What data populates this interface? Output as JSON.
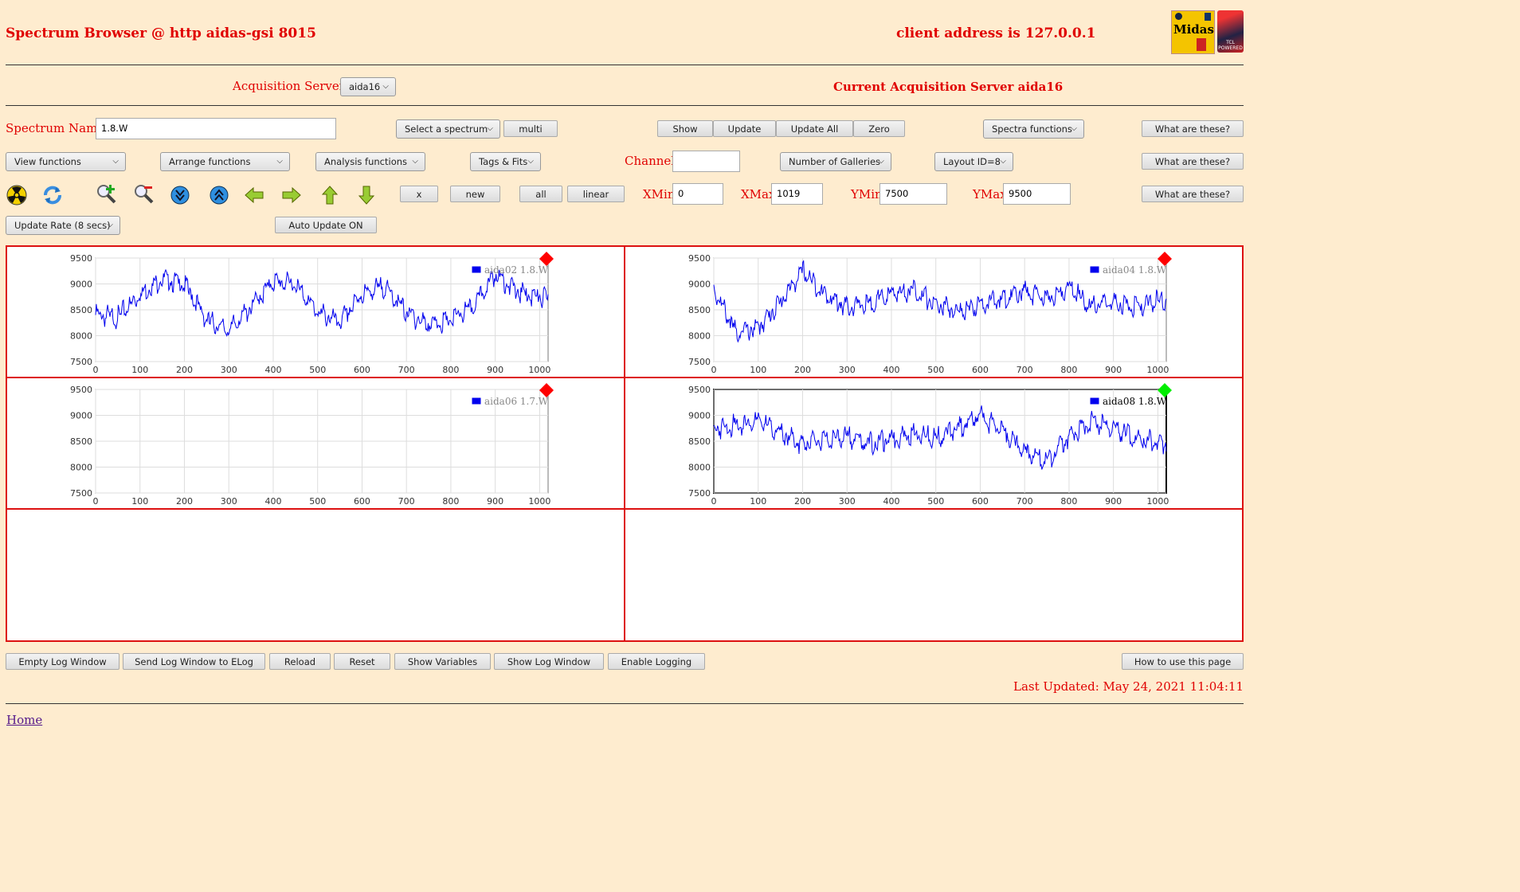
{
  "header": {
    "title": "Spectrum Browser @ http aidas-gsi 8015",
    "client": "client address is 127.0.0.1",
    "logo1_text": "Midas",
    "logo2_text": "TCL POWERED"
  },
  "servers": {
    "label": "Acquisition Servers",
    "selected": "aida16",
    "current": "Current Acquisition Server aida16"
  },
  "row1": {
    "spectrum_label": "Spectrum Name:",
    "spectrum_value": "1.8.W",
    "select_spectrum": "Select a spectrum",
    "multi": "multi",
    "show": "Show",
    "update": "Update",
    "update_all": "Update All",
    "zero": "Zero",
    "spectra_functions": "Spectra functions",
    "what": "What are these?"
  },
  "row2": {
    "view": "View functions",
    "arrange": "Arrange functions",
    "analysis": "Analysis functions",
    "tags": "Tags & Fits",
    "channel_label": "Channel:",
    "channel_value": "",
    "galleries": "Number of Galleries",
    "layout": "Layout ID=8",
    "what": "What are these?"
  },
  "row3": {
    "icons": [
      "radiation-icon",
      "refresh-icon",
      "zoom-in-icon",
      "zoom-out-icon",
      "compress-down-icon",
      "expand-up-icon",
      "arrow-left-icon",
      "arrow-right-icon",
      "arrow-up-icon",
      "arrow-down-icon"
    ],
    "x": "x",
    "new": "new",
    "all": "all",
    "linear": "linear",
    "xmin_label": "XMin",
    "xmin": "0",
    "xmax_label": "XMax",
    "xmax": "1019",
    "ymin_label": "YMin",
    "ymin": "7500",
    "ymax_label": "YMax",
    "ymax": "9500",
    "what": "What are these?"
  },
  "row4": {
    "update_rate": "Update Rate (8 secs)",
    "auto_update": "Auto Update ON"
  },
  "footer": {
    "buttons": [
      "Empty Log Window",
      "Send Log Window to ELog",
      "Reload",
      "Reset",
      "Show Variables",
      "Show Log Window",
      "Enable Logging"
    ],
    "howto": "How to use this page",
    "last_updated": "Last Updated: May 24, 2021 11:04:11",
    "home": "Home"
  },
  "colors": {
    "accent": "#e00000",
    "background": "#feeccf",
    "series": "#0000ee",
    "status_bad": "#ff0000",
    "status_ok": "#00ee00"
  },
  "chart_data": [
    {
      "type": "line",
      "legend": "aida02 1.8.W",
      "status": "red",
      "selected": false,
      "xlim": [
        0,
        1019
      ],
      "ylim": [
        7500,
        9500
      ],
      "xticks": [
        0,
        100,
        200,
        300,
        400,
        500,
        600,
        700,
        800,
        900,
        1000
      ],
      "yticks": [
        7500,
        8000,
        8500,
        9000,
        9500
      ],
      "grid": true,
      "legend_position": "top-right",
      "x": [
        0,
        50,
        100,
        150,
        200,
        250,
        300,
        350,
        400,
        450,
        500,
        550,
        600,
        650,
        700,
        750,
        800,
        850,
        900,
        950,
        1019
      ],
      "y": [
        8400,
        8350,
        8800,
        9100,
        9000,
        8300,
        8100,
        8550,
        9050,
        9000,
        8450,
        8250,
        8800,
        8950,
        8450,
        8200,
        8300,
        8550,
        9200,
        8850,
        8700
      ]
    },
    {
      "type": "line",
      "legend": "aida04 1.8.W",
      "status": "red",
      "selected": false,
      "xlim": [
        0,
        1019
      ],
      "ylim": [
        7500,
        9500
      ],
      "xticks": [
        0,
        100,
        200,
        300,
        400,
        500,
        600,
        700,
        800,
        900,
        1000
      ],
      "yticks": [
        7500,
        8000,
        8500,
        9000,
        9500
      ],
      "grid": true,
      "legend_position": "top-right",
      "x": [
        0,
        50,
        100,
        150,
        200,
        250,
        300,
        350,
        400,
        450,
        500,
        550,
        600,
        650,
        700,
        750,
        800,
        850,
        900,
        950,
        1019
      ],
      "y": [
        8900,
        8050,
        8150,
        8650,
        9250,
        8800,
        8550,
        8600,
        8800,
        8900,
        8600,
        8450,
        8600,
        8700,
        8850,
        8700,
        8950,
        8550,
        8650,
        8550,
        8700
      ]
    },
    {
      "type": "line",
      "legend": "aida06 1.7.W",
      "status": "red",
      "selected": false,
      "xlim": [
        0,
        1019
      ],
      "ylim": [
        7500,
        9500
      ],
      "xticks": [
        0,
        100,
        200,
        300,
        400,
        500,
        600,
        700,
        800,
        900,
        1000
      ],
      "yticks": [
        7500,
        8000,
        8500,
        9000,
        9500
      ],
      "grid": true,
      "legend_position": "top-right",
      "x": [],
      "y": []
    },
    {
      "type": "line",
      "legend": "aida08 1.8.W",
      "status": "green",
      "selected": true,
      "xlim": [
        0,
        1019
      ],
      "ylim": [
        7500,
        9500
      ],
      "xticks": [
        0,
        100,
        200,
        300,
        400,
        500,
        600,
        700,
        800,
        900,
        1000
      ],
      "yticks": [
        7500,
        8000,
        8500,
        9000,
        9500
      ],
      "grid": true,
      "legend_position": "top-right",
      "x": [
        0,
        50,
        100,
        150,
        200,
        250,
        300,
        350,
        400,
        450,
        500,
        550,
        600,
        650,
        700,
        750,
        800,
        850,
        900,
        950,
        1019
      ],
      "y": [
        8750,
        8800,
        8900,
        8650,
        8450,
        8500,
        8600,
        8450,
        8550,
        8650,
        8550,
        8750,
        9000,
        8700,
        8300,
        8100,
        8600,
        8900,
        8750,
        8550,
        8450
      ]
    }
  ]
}
